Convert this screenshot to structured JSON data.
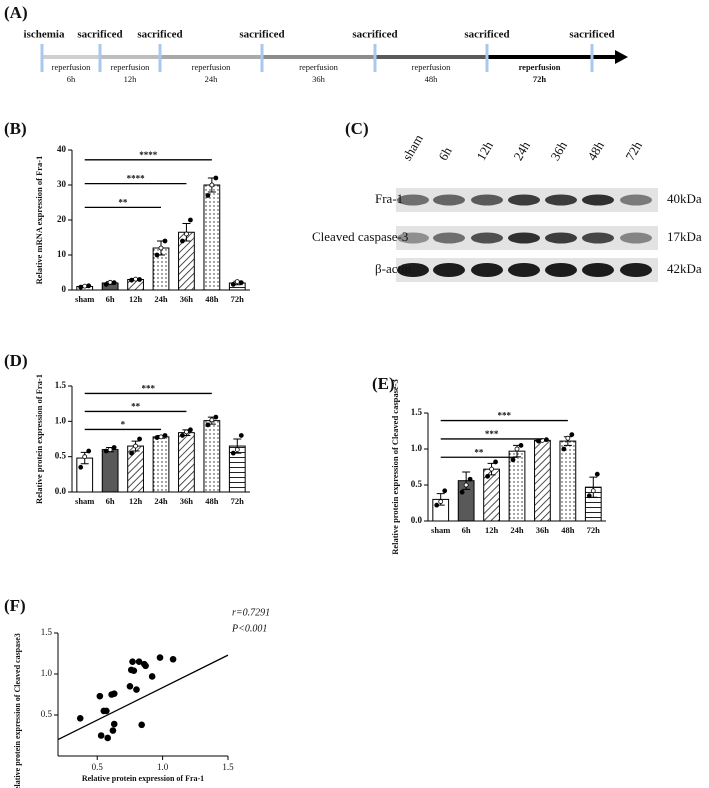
{
  "panel_labels": [
    "(A)",
    "(B)",
    "(C)",
    "(D)",
    "(E)",
    "(F)"
  ],
  "timeline": {
    "events": [
      "ischemia",
      "sacrificed",
      "sacrificed",
      "sacrificed",
      "sacrificed",
      "sacrificed",
      "sacrificed"
    ],
    "segments": [
      {
        "label": "reperfusion",
        "duration": "6h"
      },
      {
        "label": "reperfusion",
        "duration": "12h"
      },
      {
        "label": "reperfusion",
        "duration": "24h"
      },
      {
        "label": "reperfusion",
        "duration": "36h"
      },
      {
        "label": "reperfusion",
        "duration": "48h"
      },
      {
        "label": "reperfusion",
        "duration": "72h"
      }
    ]
  },
  "blot": {
    "lanes": [
      "sham",
      "6h",
      "12h",
      "24h",
      "36h",
      "48h",
      "72h"
    ],
    "rows": [
      {
        "label": "Fra-1",
        "size": "40kDa"
      },
      {
        "label": "Cleaved caspase-3",
        "size": "17kDa"
      },
      {
        "label": "β-actin",
        "size": "42kDa"
      }
    ]
  },
  "chart_data": [
    {
      "type": "bar",
      "ylabel": "Relative mRNA expression of Fra-1",
      "categories": [
        "sham",
        "6h",
        "12h",
        "24h",
        "36h",
        "48h",
        "72h"
      ],
      "values": [
        1,
        2,
        3,
        12,
        16.5,
        30,
        2
      ],
      "errors": [
        0.3,
        0.4,
        0.3,
        2,
        2.5,
        2,
        0.5
      ],
      "points": [
        [
          0.8,
          1.1,
          1.2
        ],
        [
          1.6,
          2.2,
          2.1
        ],
        [
          2.8,
          3.1,
          3.0
        ],
        [
          10,
          12,
          14
        ],
        [
          14,
          16,
          20
        ],
        [
          27,
          30,
          32
        ],
        [
          1.6,
          2.4,
          2.1
        ]
      ],
      "patterns": [
        "white",
        "solid",
        "diag",
        "dots",
        "diag",
        "dots",
        "hlines"
      ],
      "ylim": [
        0,
        40
      ],
      "yticks": [
        0,
        10,
        20,
        30,
        40
      ],
      "comparisons": [
        {
          "label": "**",
          "from": 0,
          "to": 3
        },
        {
          "label": "****",
          "from": 0,
          "to": 4
        },
        {
          "label": "****",
          "from": 0,
          "to": 5
        }
      ]
    },
    {
      "type": "bar",
      "ylabel": "Relative protein expression of Fra-1",
      "categories": [
        "sham",
        "6h",
        "12h",
        "24h",
        "36h",
        "48h",
        "72h"
      ],
      "values": [
        0.48,
        0.6,
        0.65,
        0.78,
        0.84,
        1.01,
        0.65
      ],
      "errors": [
        0.08,
        0.03,
        0.07,
        0.02,
        0.04,
        0.05,
        0.1
      ],
      "points": [
        [
          0.35,
          0.5,
          0.58
        ],
        [
          0.58,
          0.6,
          0.63
        ],
        [
          0.55,
          0.65,
          0.75
        ],
        [
          0.77,
          0.78,
          0.8
        ],
        [
          0.8,
          0.85,
          0.88
        ],
        [
          0.95,
          1.02,
          1.06
        ],
        [
          0.55,
          0.6,
          0.8
        ]
      ],
      "patterns": [
        "white",
        "solid",
        "diag",
        "dots",
        "diag",
        "dots",
        "hlines"
      ],
      "ylim": [
        0,
        1.5
      ],
      "yticks": [
        {
          "value": 0,
          "label": "0.0"
        },
        0.5,
        {
          "value": 1,
          "label": "1.0"
        },
        1.5
      ],
      "comparisons": [
        {
          "label": "*",
          "from": 0,
          "to": 3
        },
        {
          "label": "**",
          "from": 0,
          "to": 4
        },
        {
          "label": "***",
          "from": 0,
          "to": 5
        }
      ]
    },
    {
      "type": "bar",
      "ylabel": "Relative protein expression of Cleaved caspase-3",
      "categories": [
        "sham",
        "6h",
        "12h",
        "24h",
        "36h",
        "48h",
        "72h"
      ],
      "values": [
        0.3,
        0.56,
        0.72,
        0.97,
        1.12,
        1.11,
        0.47
      ],
      "errors": [
        0.08,
        0.12,
        0.08,
        0.08,
        0.01,
        0.06,
        0.14
      ],
      "points": [
        [
          0.22,
          0.27,
          0.42
        ],
        [
          0.4,
          0.5,
          0.58
        ],
        [
          0.62,
          0.72,
          0.82
        ],
        [
          0.85,
          1.0,
          1.05
        ],
        [
          1.11,
          1.12,
          1.13
        ],
        [
          1.0,
          1.15,
          1.2
        ],
        [
          0.35,
          0.42,
          0.65
        ]
      ],
      "patterns": [
        "white",
        "solid",
        "diag",
        "dots",
        "diag",
        "dots",
        "hlines"
      ],
      "ylim": [
        0,
        1.5
      ],
      "yticks": [
        {
          "value": 0,
          "label": "0.0"
        },
        0.5,
        {
          "value": 1,
          "label": "1.0"
        },
        1.5
      ],
      "comparisons": [
        {
          "label": "**",
          "from": 0,
          "to": 3
        },
        {
          "label": "***",
          "from": 0,
          "to": 4
        },
        {
          "label": "***",
          "from": 0,
          "to": 5
        }
      ]
    },
    {
      "type": "scatter",
      "xlabel": "Relative protein expression of Fra-1",
      "ylabel": "Relative protein expression of Cleaved caspase3",
      "x": [
        0.37,
        0.52,
        0.53,
        0.57,
        0.58,
        0.61,
        0.62,
        0.63,
        0.63,
        0.55,
        0.75,
        0.76,
        0.77,
        0.78,
        0.8,
        0.82,
        0.84,
        0.86,
        0.87,
        0.92,
        0.98,
        1.08
      ],
      "y": [
        0.46,
        0.73,
        0.25,
        0.55,
        0.22,
        0.75,
        0.31,
        0.76,
        0.39,
        0.55,
        0.85,
        1.05,
        1.15,
        1.04,
        0.81,
        1.15,
        0.38,
        1.12,
        1.1,
        0.97,
        1.2,
        1.18
      ],
      "fit": {
        "x": [
          0.2,
          1.5
        ],
        "y": [
          0.2,
          1.23
        ]
      },
      "annotations": [
        "r=0.7291",
        "P<0.001"
      ],
      "xlim": [
        0.2,
        1.5
      ],
      "xticks": [
        0.5,
        {
          "value": 1,
          "label": "1.0"
        },
        1.5
      ],
      "ylim": [
        0,
        1.5
      ],
      "yticks": [
        0.5,
        {
          "value": 1,
          "label": "1.0"
        },
        1.5
      ]
    }
  ]
}
